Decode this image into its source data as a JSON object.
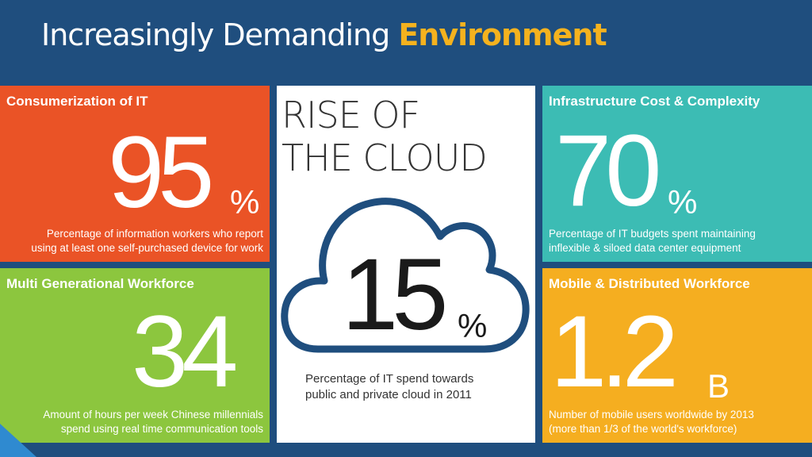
{
  "title": {
    "main": "Increasingly Demanding ",
    "accent": "Environment"
  },
  "tiles": {
    "consumerization": {
      "heading": "Consumerization of IT",
      "value": "95",
      "unit": "%",
      "desc1": "Percentage of information workers who report",
      "desc2": "using at least one self-purchased device for work",
      "color": "#ea5326"
    },
    "generational": {
      "heading": "Multi Generational Workforce",
      "value": "34",
      "desc1": "Amount of hours per week Chinese millennials",
      "desc2": "spend using real time communication tools",
      "color": "#8cc63e"
    },
    "cloud": {
      "heading1": "RISE OF",
      "heading2": "THE CLOUD",
      "value": "15",
      "unit": "%",
      "desc1": "Percentage of IT spend towards",
      "desc2": "public and private cloud in 2011",
      "icon": "cloud-icon"
    },
    "infrastructure": {
      "heading": "Infrastructure Cost & Complexity",
      "value": "70",
      "unit": "%",
      "desc1": "Percentage of IT budgets spent maintaining",
      "desc2": "inflexible & siloed data center equipment",
      "color": "#3cbcb4"
    },
    "mobile": {
      "heading": "Mobile & Distributed Workforce",
      "value": "1.2",
      "unit": "B",
      "desc1": "Number of mobile users worldwide by 2013",
      "desc2": "(more than 1/3 of the world's workforce)",
      "color": "#f5ae20"
    }
  },
  "colors": {
    "background": "#1f4e7e",
    "accent": "#f5b21e",
    "cloud_outline": "#1f4e7e"
  }
}
